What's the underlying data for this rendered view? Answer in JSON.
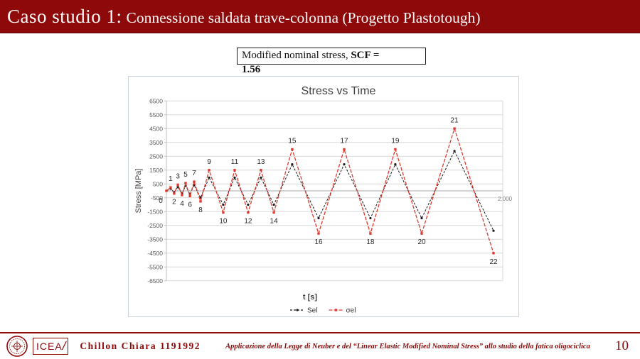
{
  "colors": {
    "brand": "#8e0909",
    "series_sel": "#1a1a1a",
    "series_sigma": "#e03a30",
    "grid": "#d9d9d9",
    "zero_line": "#a6a6a6"
  },
  "header": {
    "title_main": "Caso studio 1:",
    "title_sub": "Connessione saldata trave-colonna (Progetto Plastotough)"
  },
  "callout": {
    "line1_normal": "Modified nominal stress, ",
    "line1_bold": "SCF =",
    "value": "1.56"
  },
  "chart_data": {
    "type": "line",
    "title": "Stress vs Time",
    "xlabel": "t [s]",
    "ylabel": "Stress [MPa]",
    "ylim": [
      -6500,
      6500
    ],
    "ytick_step": 1000,
    "xlim": [
      0,
      2000
    ],
    "x_axis_end_label": "2.000",
    "grid": true,
    "legend_position": "bottom",
    "x": [
      0,
      25,
      46,
      68,
      93,
      114,
      140,
      165,
      203,
      254,
      338,
      406,
      486,
      562,
      639,
      748,
      905,
      1057,
      1213,
      1361,
      1518,
      1713,
      1945
    ],
    "point_labels": [
      "0",
      "1",
      "2",
      "3",
      "4",
      "5",
      "6",
      "7",
      "8",
      "9",
      "10",
      "11",
      "12",
      "13",
      "14",
      "15",
      "16",
      "17",
      "18",
      "19",
      "20",
      "21",
      "22"
    ],
    "series": [
      {
        "name": "Sel",
        "color": "#1a1a1a",
        "dash": "3 2",
        "values": [
          0,
          160,
          -120,
          280,
          -190,
          360,
          -240,
          420,
          -490,
          960,
          -1000,
          960,
          -1000,
          960,
          -1000,
          1920,
          -1975,
          1920,
          -1975,
          1920,
          -1975,
          2880,
          -2880
        ]
      },
      {
        "name": "σel",
        "color": "#e03a30",
        "dash": "5 2",
        "values": [
          0,
          250,
          -190,
          440,
          -300,
          560,
          -380,
          660,
          -760,
          1500,
          -1560,
          1500,
          -1560,
          1500,
          -1560,
          3000,
          -3080,
          3000,
          -3080,
          3000,
          -3080,
          4500,
          -4500
        ]
      }
    ]
  },
  "footer": {
    "logo_text": "ICEA",
    "author": "Chillon Chiara 1191992",
    "reference": "Applicazione della Legge di Neuber e del “Linear Elastic Modified Nominal Stress” allo studio della fatica oligociclica",
    "page_number": "10"
  }
}
